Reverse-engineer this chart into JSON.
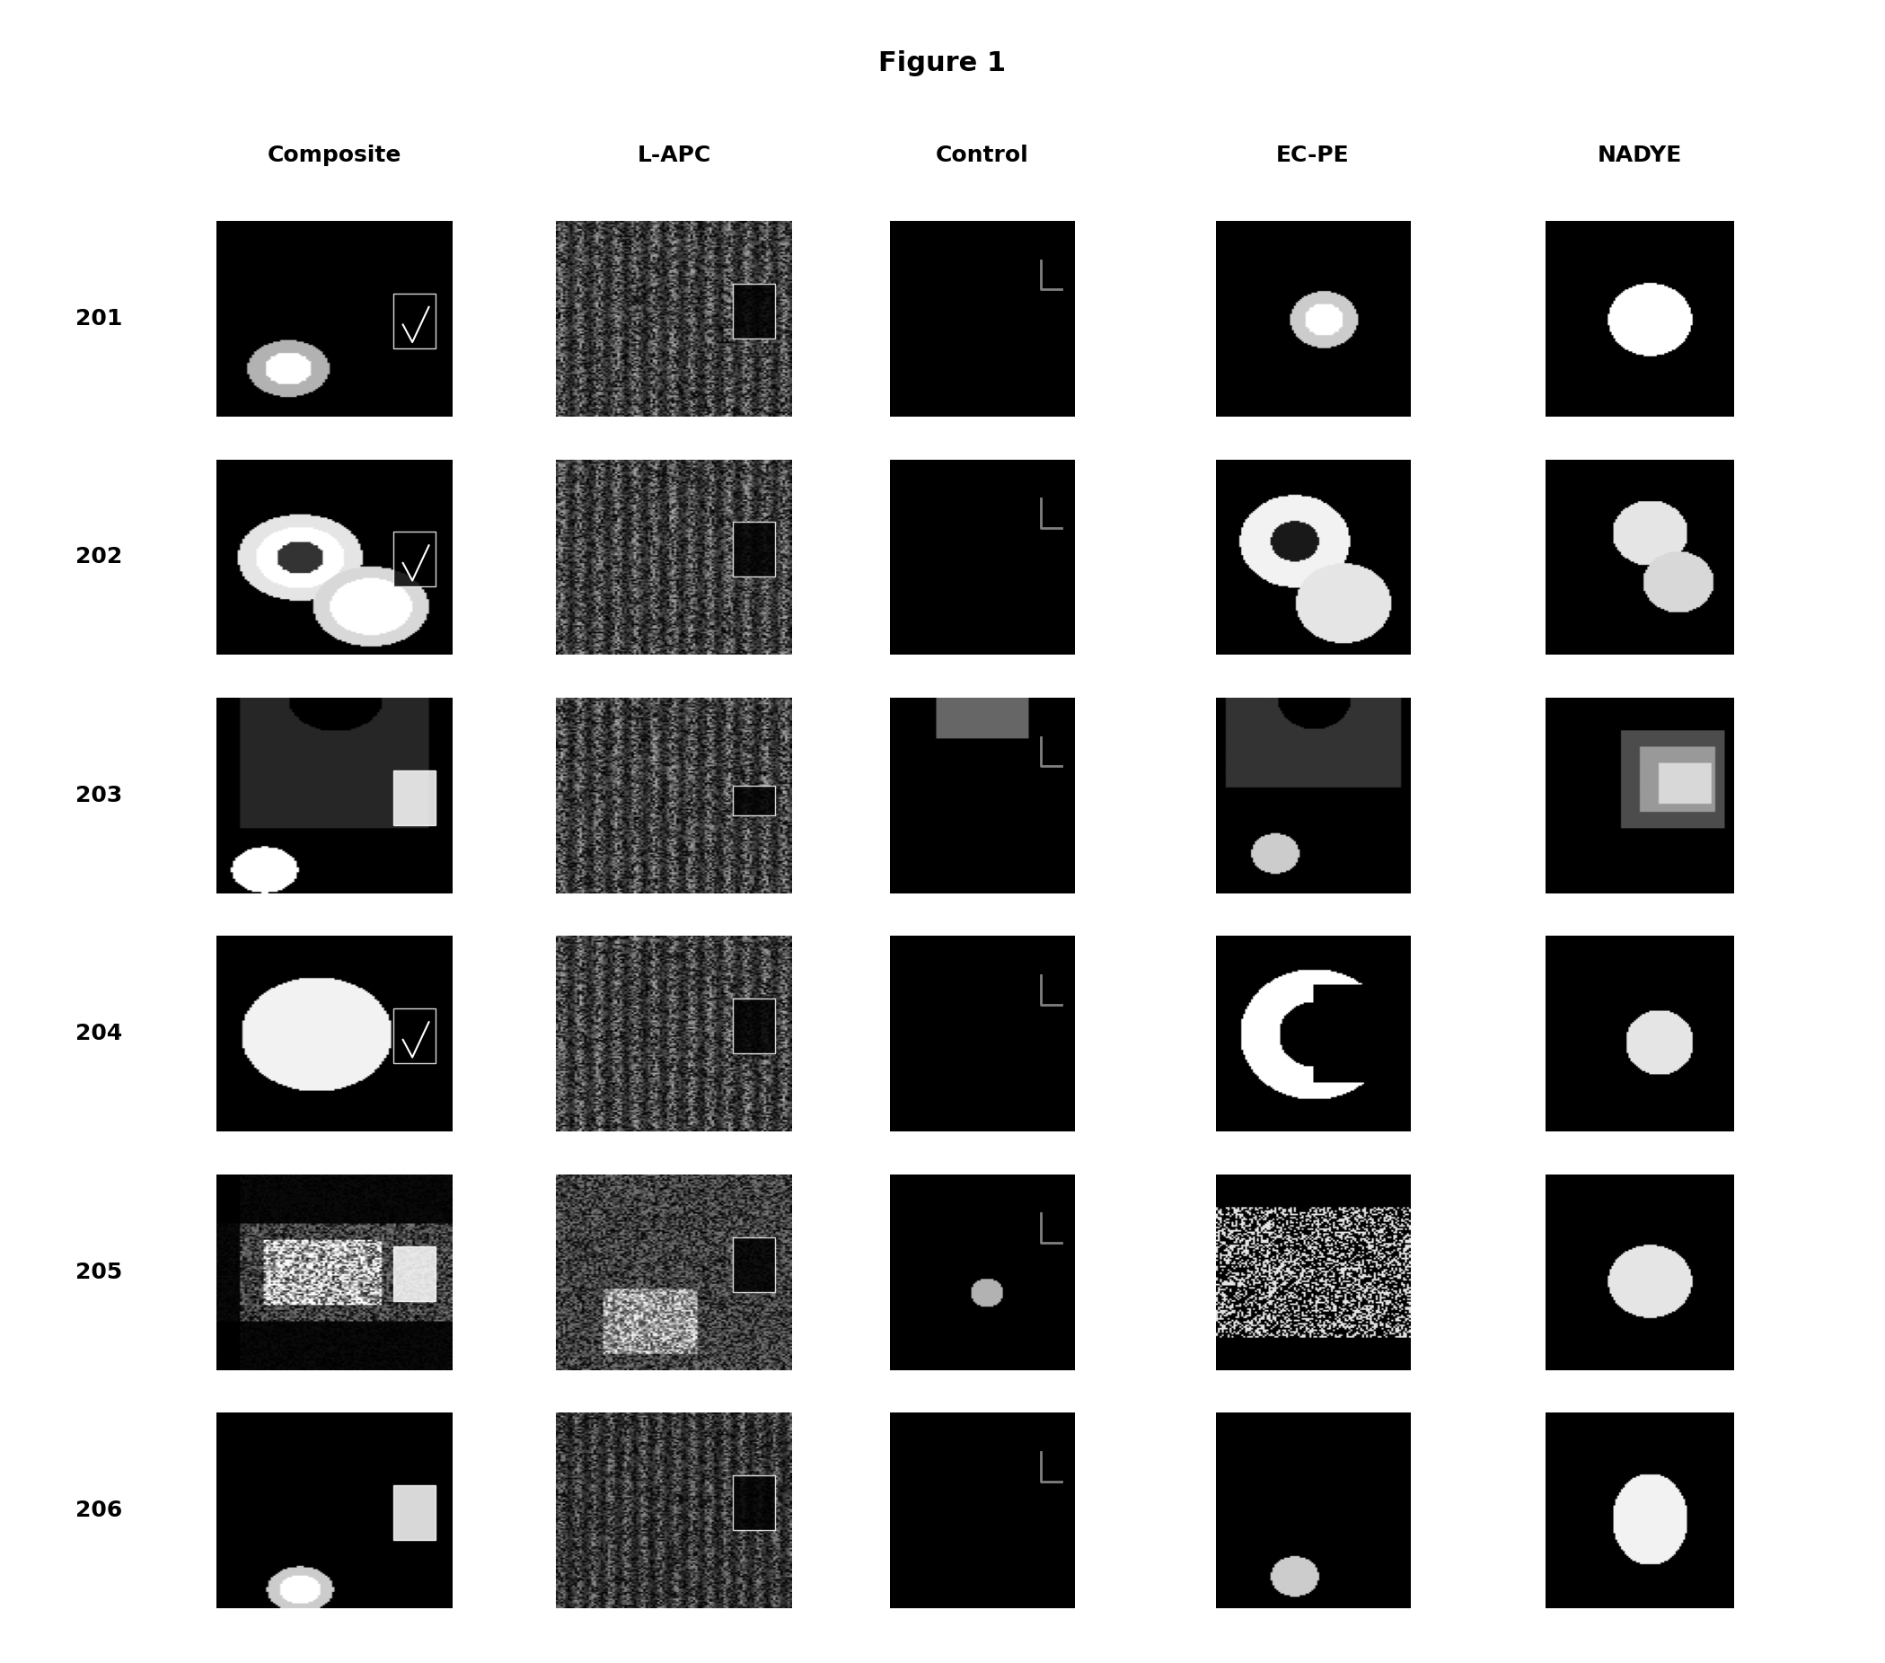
{
  "title": "Figure 1",
  "title_fontsize": 22,
  "title_fontweight": "bold",
  "col_headers": [
    "Composite",
    "L-APC",
    "Control",
    "EC-PE",
    "NADYE"
  ],
  "row_labels": [
    "201",
    "202",
    "203",
    "204",
    "205",
    "206"
  ],
  "col_header_fontsize": 18,
  "row_label_fontsize": 18,
  "background_color": "#ffffff",
  "image_bg": "#000000",
  "n_rows": 6,
  "n_cols": 5
}
